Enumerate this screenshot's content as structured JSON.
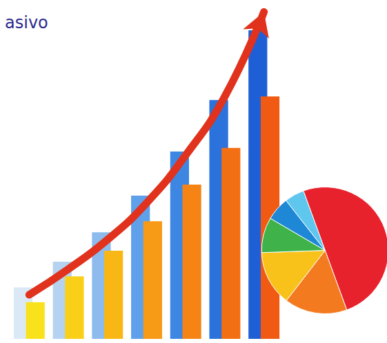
{
  "chart_data": [
    {
      "type": "bar",
      "title": "asivo",
      "categories": [
        null,
        null,
        null,
        null,
        null,
        null,
        null
      ],
      "ylim": [
        0,
        450
      ],
      "grid": false,
      "tick_labels": false,
      "series": [
        {
          "type": "bar",
          "colors": [
            "#dbe9f7",
            "#b5d3f0",
            "#8dbbee",
            "#5fa0ea",
            "#3d87e3",
            "#2b72dc",
            "#1f5fd6"
          ],
          "values": [
            70,
            105,
            145,
            195,
            255,
            325,
            420
          ]
        },
        {
          "type": "bar",
          "colors": [
            "#f9e21b",
            "#f9cf17",
            "#f9b715",
            "#f79a15",
            "#f58414",
            "#f36f13",
            "#f05a12"
          ],
          "values": [
            50,
            85,
            120,
            160,
            210,
            260,
            330
          ]
        },
        {
          "type": "line",
          "color": "#e0321c",
          "marker": "arrow",
          "line_style": "solid",
          "values": [
            60,
            95,
            135,
            185,
            250,
            330,
            445
          ]
        }
      ]
    },
    {
      "type": "pie",
      "values": [
        50,
        16,
        14,
        9,
        6,
        5
      ],
      "colors": [
        "#e8222d",
        "#f47a20",
        "#f9c21b",
        "#3fb34a",
        "#1e88d6",
        "#5fc6ee"
      ]
    }
  ]
}
